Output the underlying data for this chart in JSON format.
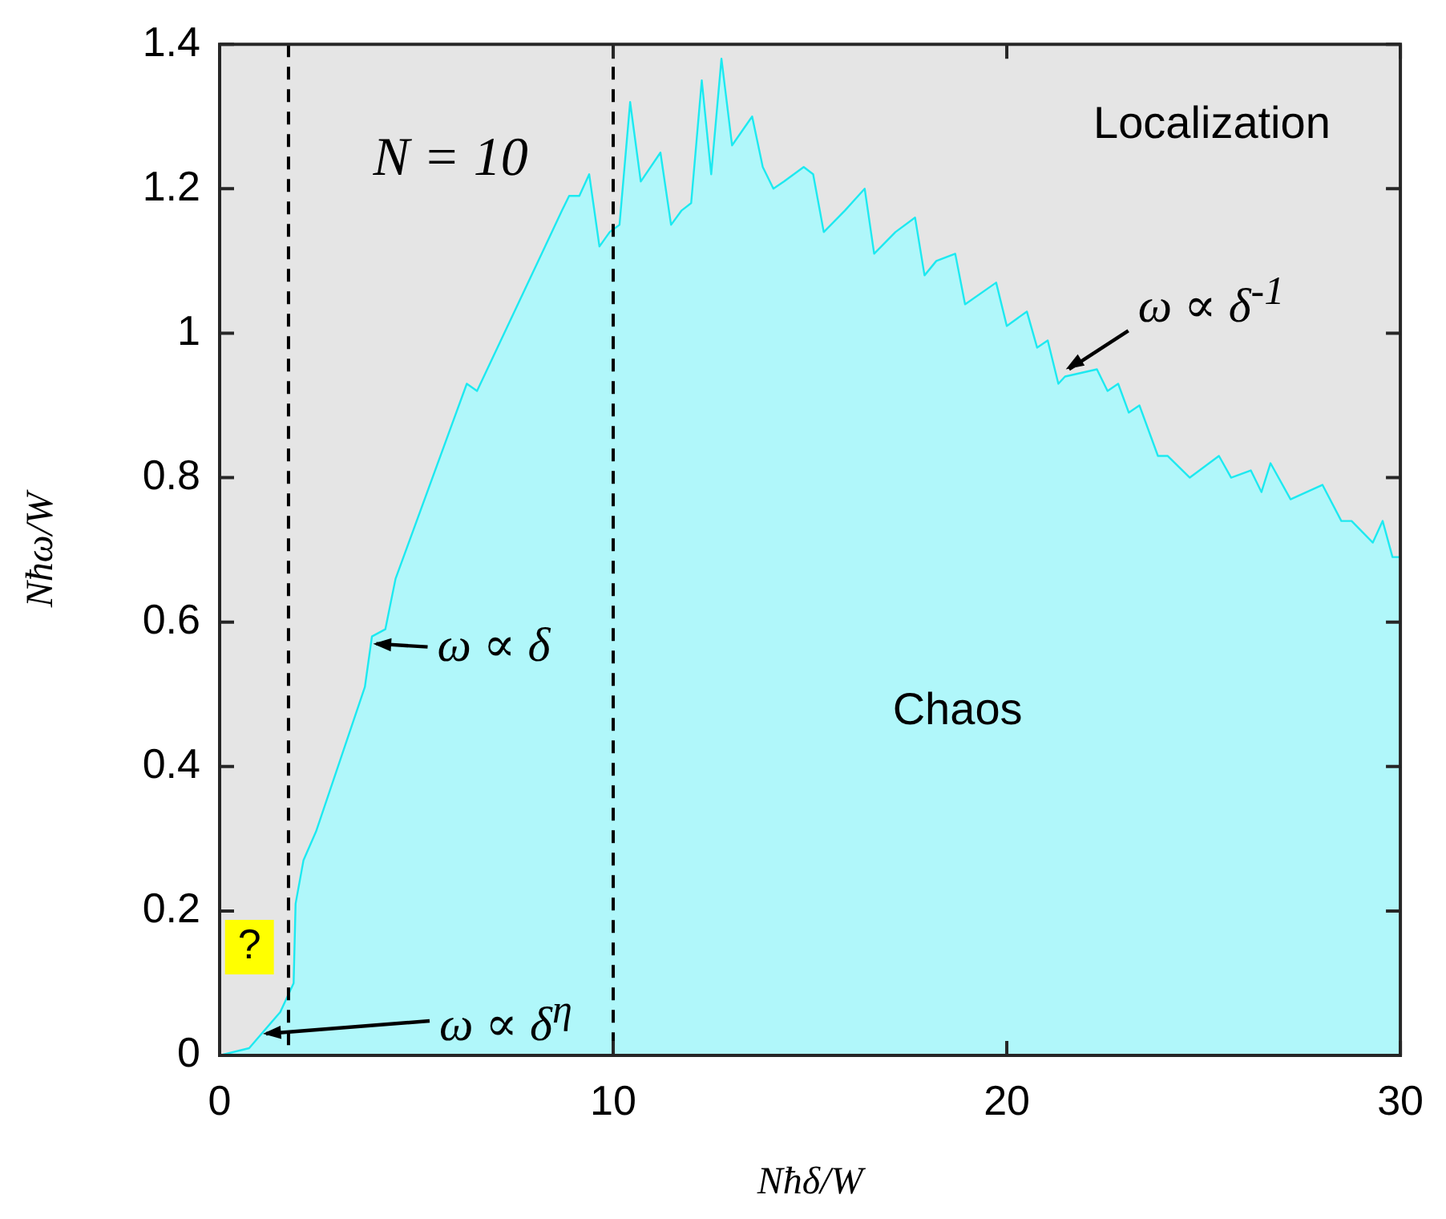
{
  "chart_data": {
    "type": "area",
    "xlabel": "Nħδ/W",
    "ylabel": "Nħω/W",
    "x": [
      0,
      0.75,
      1.54,
      1.88,
      1.93,
      2.13,
      2.45,
      3.69,
      3.87,
      4.21,
      4.47,
      6.28,
      6.54,
      8.27,
      8.7,
      8.88,
      9.14,
      9.39,
      9.65,
      9.91,
      10.16,
      10.43,
      10.7,
      11.2,
      11.47,
      11.74,
      11.98,
      12.25,
      12.49,
      12.75,
      13.02,
      13.53,
      13.8,
      14.07,
      14.34,
      14.84,
      15.08,
      15.35,
      15.89,
      16.39,
      16.63,
      17.17,
      17.67,
      17.91,
      18.21,
      18.69,
      18.94,
      19.73,
      20,
      20.51,
      20.77,
      21.04,
      21.31,
      21.48,
      22.29,
      22.56,
      22.83,
      23.1,
      23.37,
      23.84,
      24.09,
      24.65,
      25.39,
      25.7,
      26.2,
      26.47,
      26.7,
      27.21,
      28.02,
      28.5,
      28.76,
      29.3,
      29.55,
      29.8,
      30
    ],
    "series": [
      {
        "color": "#1de9f0",
        "values": [
          0,
          0.01,
          0.06,
          0.1,
          0.21,
          0.27,
          0.31,
          0.51,
          0.58,
          0.59,
          0.66,
          0.93,
          0.92,
          1.12,
          1.17,
          1.19,
          1.19,
          1.22,
          1.12,
          1.14,
          1.15,
          1.32,
          1.21,
          1.25,
          1.15,
          1.17,
          1.18,
          1.35,
          1.22,
          1.38,
          1.26,
          1.3,
          1.23,
          1.2,
          1.21,
          1.23,
          1.22,
          1.14,
          1.17,
          1.2,
          1.11,
          1.14,
          1.16,
          1.08,
          1.1,
          1.11,
          1.04,
          1.07,
          1.01,
          1.03,
          0.98,
          0.99,
          0.93,
          0.94,
          0.95,
          0.92,
          0.93,
          0.89,
          0.9,
          0.83,
          0.83,
          0.8,
          0.83,
          0.8,
          0.81,
          0.78,
          0.82,
          0.77,
          0.79,
          0.74,
          0.74,
          0.71,
          0.74,
          0.69,
          0.69
        ]
      }
    ],
    "xlim": [
      0,
      30
    ],
    "xticks": [
      0,
      10,
      20,
      30
    ],
    "ylim": [
      0,
      1.4
    ],
    "yticks": [
      0,
      0.2,
      0.4,
      0.6,
      0.8,
      1,
      1.2,
      1.4
    ],
    "grid": false,
    "legend": false,
    "marker": "none",
    "line_style": "solid",
    "ref_lines": [
      {
        "axis": "x",
        "value": 1.75,
        "color": "#000000",
        "line_style": "dashed"
      },
      {
        "axis": "x",
        "value": 10,
        "color": "#000000",
        "line_style": "dashed"
      }
    ],
    "annotations": [
      "N = 10",
      "Localization",
      "Chaos",
      "?",
      {
        "text": "ω ∝ δ",
        "x": 3.9,
        "y": 0.57
      },
      {
        "text": "ω ∝ δ$^{-1}$",
        "x": 21.5,
        "y": 0.95
      },
      {
        "text": "ω ∝ δ$^{η}$",
        "x": 1.1,
        "y": 0.03
      }
    ]
  }
}
